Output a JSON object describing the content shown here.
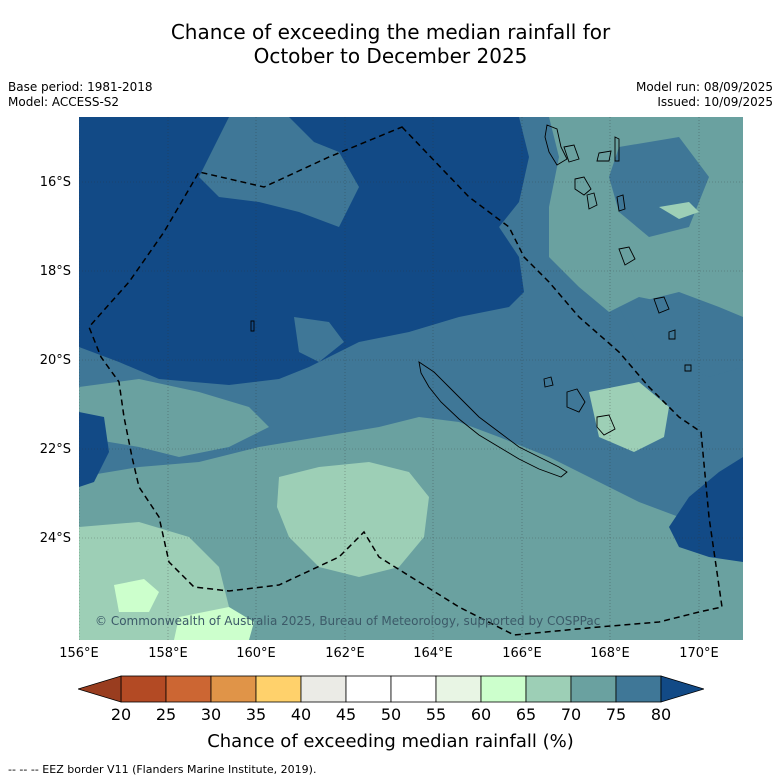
{
  "title_line1": "Chance of exceeding the median rainfall for",
  "title_line2": "October to December 2025",
  "base_period": "Base period: 1981-2018",
  "model": "Model: ACCESS-S2",
  "model_run": "Model run: 08/09/2025",
  "issued": "Issued: 10/09/2025",
  "copyright": "© Commonwealth of Australia 2025, Bureau of Meteorology, supported by COSPPac",
  "lat_labels": [
    "16°S",
    "18°S",
    "20°S",
    "22°S",
    "24°S"
  ],
  "lon_labels": [
    "156°E",
    "158°E",
    "160°E",
    "162°E",
    "164°E",
    "166°E",
    "168°E",
    "170°E"
  ],
  "colorbar": {
    "ticks": [
      "20",
      "25",
      "30",
      "35",
      "40",
      "45",
      "50",
      "55",
      "60",
      "65",
      "70",
      "75",
      "80"
    ],
    "colors": [
      "#b34a24",
      "#cc6633",
      "#e09448",
      "#ffd16b",
      "#ebebe6",
      "#ffffff",
      "#ffffff",
      "#e8f5e4",
      "#ccffcc",
      "#9dcfb6",
      "#6aa1a0",
      "#3f7797"
    ],
    "under_color": "#993d1f",
    "over_color": "#124a86",
    "label": "Chance of exceeding median rainfall (%)"
  },
  "footnote": "-- -- -- EEZ border V11 (Flanders Marine Institute, 2019).",
  "map_colors": {
    "c65_70": "#9dcfb6",
    "c70_75": "#6aa1a0",
    "c75_80": "#3f7797",
    "c80_plus": "#124a86",
    "c60_65": "#ccffcc"
  }
}
